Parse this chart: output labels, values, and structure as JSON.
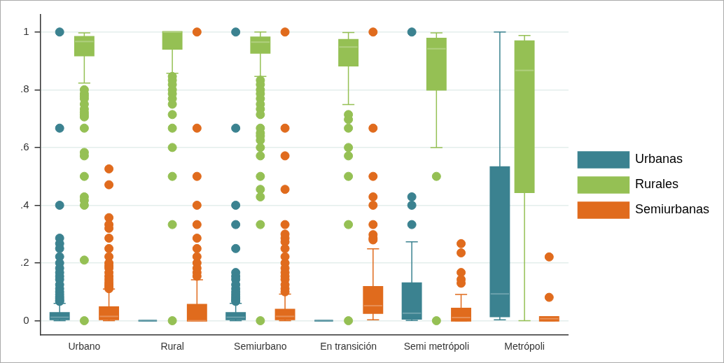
{
  "chart_data": {
    "type": "box",
    "categories": [
      "Urbano",
      "Rural",
      "Semiurbano",
      "En transición",
      "Semi metrópoli",
      "Metrópoli"
    ],
    "series": [
      {
        "name": "Urbanas",
        "color": "#3b8290",
        "boxes": [
          {
            "low": 0,
            "q1": 0.005,
            "median": 0.012,
            "q3": 0.027,
            "high": 0.06,
            "outliers": [
              1,
              0.667,
              0.4,
              0.286,
              0.267,
              0.25,
              0.222,
              0.2,
              0.182,
              0.167,
              0.154,
              0.143,
              0.125,
              0.111,
              0.1,
              0.091,
              0.083,
              0.077,
              0.071,
              0.067
            ]
          },
          {
            "low": 0,
            "q1": 0,
            "median": 0,
            "q3": 0,
            "high": 0
          },
          {
            "low": 0,
            "q1": 0.005,
            "median": 0.012,
            "q3": 0.027,
            "high": 0.06,
            "outliers": [
              1,
              0.667,
              0.4,
              0.333,
              0.25,
              0.167,
              0.154,
              0.143,
              0.125,
              0.111,
              0.1,
              0.091,
              0.083,
              0.077,
              0.071,
              0.067
            ]
          },
          {
            "low": 0,
            "q1": 0,
            "median": 0,
            "q3": 0,
            "high": 0
          },
          {
            "low": 0.001,
            "q1": 0.007,
            "median": 0.026,
            "q3": 0.13,
            "high": 0.273,
            "outliers": [
              1,
              0.429,
              0.4,
              0.333
            ]
          },
          {
            "low": 0.003,
            "q1": 0.015,
            "median": 0.093,
            "q3": 0.532,
            "high": 1
          }
        ]
      },
      {
        "name": "Rurales",
        "color": "#95c054",
        "boxes": [
          {
            "low": 0.823,
            "q1": 0.919,
            "median": 0.967,
            "q3": 0.983,
            "high": 0.997,
            "outliers": [
              0.8,
              0.786,
              0.778,
              0.769,
              0.75,
              0.733,
              0.722,
              0.714,
              0.706,
              0.667,
              0.583,
              0.571,
              0.5,
              0.429,
              0.417,
              0.4,
              0.21,
              0
            ]
          },
          {
            "low": 0.857,
            "q1": 0.942,
            "median": 1,
            "q3": 1,
            "high": 1,
            "outliers": [
              0.846,
              0.833,
              0.818,
              0.8,
              0.786,
              0.769,
              0.75,
              0.714,
              0.667,
              0.6,
              0.5,
              0.333,
              0
            ]
          },
          {
            "low": 0.846,
            "q1": 0.928,
            "median": 0.965,
            "q3": 0.981,
            "high": 1,
            "outliers": [
              0.833,
              0.818,
              0.8,
              0.786,
              0.769,
              0.75,
              0.733,
              0.714,
              0.667,
              0.65,
              0.64,
              0.625,
              0.6,
              0.571,
              0.5,
              0.455,
              0.429,
              0.333,
              0
            ]
          },
          {
            "low": 0.749,
            "q1": 0.884,
            "median": 0.948,
            "q3": 0.973,
            "high": 0.998,
            "outliers": [
              0.714,
              0.697,
              0.667,
              0.6,
              0.571,
              0.5,
              0.333,
              0
            ]
          },
          {
            "low": 0.6,
            "q1": 0.8,
            "median": 0.942,
            "q3": 0.977,
            "high": 0.997,
            "outliers": [
              0.5,
              0
            ]
          },
          {
            "low": 0,
            "q1": 0.445,
            "median": 0.867,
            "q3": 0.968,
            "high": 0.988
          }
        ]
      },
      {
        "name": "Semiurbanas",
        "color": "#e06b1d",
        "boxes": [
          {
            "low": 0,
            "q1": 0.005,
            "median": 0.015,
            "q3": 0.047,
            "high": 0.11,
            "outliers": [
              0.526,
              0.471,
              0.357,
              0.333,
              0.32,
              0.286,
              0.25,
              0.222,
              0.2,
              0.19,
              0.182,
              0.167,
              0.154,
              0.143,
              0.133,
              0.125,
              0.118,
              0.111
            ]
          },
          {
            "low": 0,
            "q1": 0,
            "median": 0,
            "q3": 0.055,
            "high": 0.142,
            "outliers": [
              1,
              0.667,
              0.5,
              0.4,
              0.333,
              0.286,
              0.25,
              0.222,
              0.2,
              0.182,
              0.167,
              0.154
            ]
          },
          {
            "low": 0,
            "q1": 0.005,
            "median": 0.015,
            "q3": 0.038,
            "high": 0.092,
            "outliers": [
              1,
              0.667,
              0.571,
              0.455,
              0.333,
              0.3,
              0.286,
              0.273,
              0.25,
              0.222,
              0.2,
              0.182,
              0.167,
              0.154,
              0.143,
              0.125,
              0.111,
              0.1
            ]
          },
          {
            "low": 0.003,
            "q1": 0.027,
            "median": 0.052,
            "q3": 0.117,
            "high": 0.249,
            "outliers": [
              1,
              0.667,
              0.5,
              0.429,
              0.4,
              0.333,
              0.298,
              0.286,
              0.28
            ]
          },
          {
            "low": 0,
            "q1": 0,
            "median": 0.011,
            "q3": 0.042,
            "high": 0.091,
            "outliers": [
              0.267,
              0.235,
              0.167,
              0.143,
              0.13
            ]
          },
          {
            "low": 0,
            "q1": 0,
            "median": 0.007,
            "q3": 0.013,
            "high": 0.013,
            "outliers": [
              0.221,
              0.081
            ]
          }
        ]
      }
    ],
    "ylim": [
      -0.05,
      1.06
    ],
    "yticks": [
      0,
      {
        "value": 0.2,
        "label": ".2"
      },
      {
        "value": 0.4,
        "label": ".4"
      },
      {
        "value": 0.6,
        "label": ".6"
      },
      {
        "value": 0.8,
        "label": ".8"
      },
      1
    ],
    "grid": "y",
    "legend": "right",
    "marker": "circle"
  }
}
